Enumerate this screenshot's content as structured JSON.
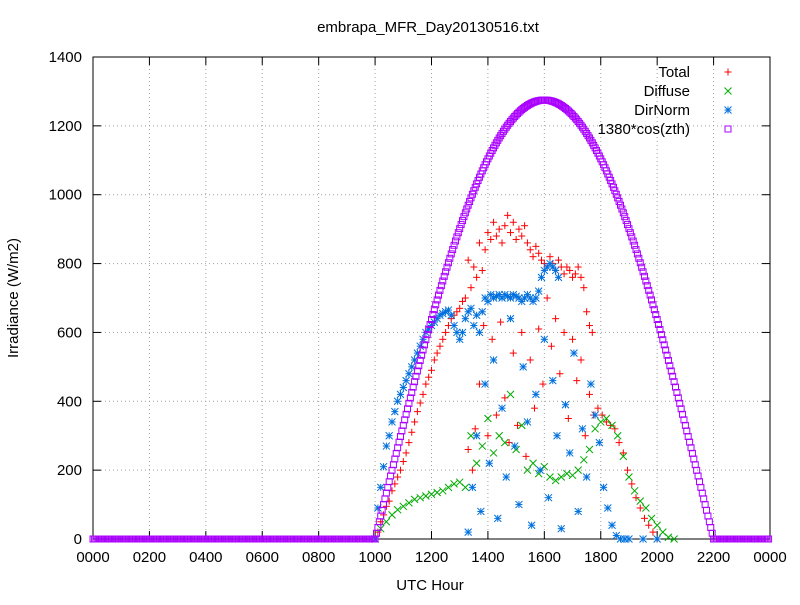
{
  "chart_data": {
    "type": "scatter",
    "title": "embrapa_MFR_Day20130516.txt",
    "xlabel": "UTC Hour",
    "ylabel": "Irradiance (W/m2)",
    "xlim": [
      0,
      24
    ],
    "ylim": [
      0,
      1400
    ],
    "x_ticks": [
      "0000",
      "0200",
      "0400",
      "0600",
      "0800",
      "1000",
      "1200",
      "1400",
      "1600",
      "1800",
      "2000",
      "2200",
      "0000"
    ],
    "y_ticks": [
      "0",
      "200",
      "400",
      "600",
      "800",
      "1000",
      "1200",
      "1400"
    ],
    "grid": true,
    "legend_position": "top-right",
    "series": [
      {
        "name": "Total",
        "marker": "plus",
        "color": "#ff0000",
        "points": [
          [
            10.0,
            0
          ],
          [
            10.1,
            20
          ],
          [
            10.2,
            50
          ],
          [
            10.3,
            70
          ],
          [
            10.4,
            95
          ],
          [
            10.5,
            110
          ],
          [
            10.6,
            140
          ],
          [
            10.7,
            160
          ],
          [
            10.8,
            180
          ],
          [
            10.9,
            200
          ],
          [
            11.0,
            225
          ],
          [
            11.1,
            250
          ],
          [
            11.2,
            280
          ],
          [
            11.3,
            310
          ],
          [
            11.4,
            340
          ],
          [
            11.5,
            370
          ],
          [
            11.6,
            395
          ],
          [
            11.7,
            420
          ],
          [
            11.8,
            450
          ],
          [
            11.9,
            470
          ],
          [
            12.0,
            490
          ],
          [
            12.1,
            520
          ],
          [
            12.2,
            540
          ],
          [
            12.3,
            560
          ],
          [
            12.4,
            580
          ],
          [
            12.5,
            600
          ],
          [
            12.6,
            620
          ],
          [
            12.7,
            640
          ],
          [
            12.8,
            650
          ],
          [
            12.9,
            660
          ],
          [
            13.0,
            670
          ],
          [
            13.1,
            690
          ],
          [
            13.2,
            700
          ],
          [
            13.3,
            810
          ],
          [
            13.4,
            730
          ],
          [
            13.5,
            790
          ],
          [
            13.6,
            760
          ],
          [
            13.7,
            860
          ],
          [
            13.8,
            780
          ],
          [
            13.9,
            840
          ],
          [
            14.0,
            890
          ],
          [
            14.1,
            870
          ],
          [
            14.2,
            920
          ],
          [
            14.3,
            880
          ],
          [
            14.4,
            900
          ],
          [
            14.5,
            860
          ],
          [
            14.6,
            910
          ],
          [
            14.7,
            940
          ],
          [
            14.8,
            890
          ],
          [
            14.9,
            920
          ],
          [
            15.0,
            870
          ],
          [
            15.1,
            900
          ],
          [
            15.2,
            880
          ],
          [
            15.3,
            910
          ],
          [
            15.4,
            860
          ],
          [
            15.5,
            840
          ],
          [
            15.6,
            820
          ],
          [
            15.7,
            850
          ],
          [
            15.8,
            830
          ],
          [
            15.9,
            810
          ],
          [
            16.0,
            800
          ],
          [
            16.1,
            790
          ],
          [
            16.2,
            820
          ],
          [
            16.3,
            800
          ],
          [
            16.4,
            780
          ],
          [
            16.5,
            810
          ],
          [
            16.6,
            790
          ],
          [
            16.7,
            770
          ],
          [
            16.8,
            790
          ],
          [
            16.9,
            780
          ],
          [
            17.0,
            760
          ],
          [
            17.1,
            770
          ],
          [
            17.2,
            790
          ],
          [
            17.3,
            760
          ],
          [
            17.4,
            730
          ],
          [
            17.5,
            660
          ],
          [
            17.6,
            620
          ],
          [
            17.7,
            600
          ],
          [
            13.3,
            260
          ],
          [
            13.45,
            200
          ],
          [
            13.55,
            320
          ],
          [
            13.7,
            450
          ],
          [
            13.85,
            620
          ],
          [
            14.0,
            300
          ],
          [
            14.15,
            580
          ],
          [
            14.3,
            360
          ],
          [
            14.45,
            630
          ],
          [
            14.6,
            410
          ],
          [
            14.75,
            280
          ],
          [
            14.9,
            540
          ],
          [
            15.05,
            330
          ],
          [
            15.2,
            600
          ],
          [
            15.35,
            240
          ],
          [
            15.5,
            520
          ],
          [
            15.65,
            380
          ],
          [
            15.8,
            610
          ],
          [
            15.95,
            450
          ],
          [
            16.1,
            700
          ],
          [
            16.25,
            560
          ],
          [
            16.4,
            640
          ],
          [
            16.55,
            480
          ],
          [
            16.7,
            600
          ],
          [
            16.85,
            350
          ],
          [
            17.0,
            580
          ],
          [
            17.15,
            460
          ],
          [
            17.3,
            520
          ],
          [
            17.45,
            300
          ],
          [
            17.6,
            420
          ],
          [
            17.75,
            360
          ],
          [
            17.9,
            380
          ],
          [
            18.05,
            360
          ],
          [
            18.2,
            340
          ],
          [
            18.35,
            330
          ],
          [
            18.5,
            320
          ],
          [
            18.65,
            280
          ],
          [
            18.8,
            250
          ],
          [
            18.95,
            200
          ],
          [
            19.1,
            160
          ],
          [
            19.25,
            120
          ],
          [
            19.4,
            90
          ],
          [
            19.55,
            60
          ],
          [
            19.7,
            40
          ],
          [
            19.85,
            20
          ],
          [
            20.0,
            0
          ]
        ]
      },
      {
        "name": "Diffuse",
        "marker": "cross",
        "color": "#00aa00",
        "points": [
          [
            10.0,
            0
          ],
          [
            10.2,
            30
          ],
          [
            10.4,
            50
          ],
          [
            10.6,
            70
          ],
          [
            10.8,
            85
          ],
          [
            11.0,
            95
          ],
          [
            11.2,
            105
          ],
          [
            11.4,
            115
          ],
          [
            11.6,
            120
          ],
          [
            11.8,
            125
          ],
          [
            12.0,
            130
          ],
          [
            12.2,
            135
          ],
          [
            12.4,
            140
          ],
          [
            12.6,
            150
          ],
          [
            12.8,
            160
          ],
          [
            13.0,
            165
          ],
          [
            13.2,
            150
          ],
          [
            13.4,
            300
          ],
          [
            13.6,
            220
          ],
          [
            13.8,
            270
          ],
          [
            14.0,
            350
          ],
          [
            14.2,
            250
          ],
          [
            14.4,
            300
          ],
          [
            14.6,
            280
          ],
          [
            14.8,
            420
          ],
          [
            15.0,
            260
          ],
          [
            15.2,
            330
          ],
          [
            15.4,
            200
          ],
          [
            15.6,
            220
          ],
          [
            15.8,
            190
          ],
          [
            16.0,
            210
          ],
          [
            16.2,
            180
          ],
          [
            16.4,
            170
          ],
          [
            16.6,
            180
          ],
          [
            16.8,
            190
          ],
          [
            17.0,
            185
          ],
          [
            17.2,
            200
          ],
          [
            17.4,
            230
          ],
          [
            17.6,
            260
          ],
          [
            17.8,
            320
          ],
          [
            18.0,
            340
          ],
          [
            18.2,
            350
          ],
          [
            18.4,
            330
          ],
          [
            18.6,
            300
          ],
          [
            18.8,
            240
          ],
          [
            19.0,
            180
          ],
          [
            19.2,
            140
          ],
          [
            19.4,
            110
          ],
          [
            19.6,
            90
          ],
          [
            19.8,
            60
          ],
          [
            20.0,
            40
          ],
          [
            20.2,
            20
          ],
          [
            20.4,
            5
          ],
          [
            20.6,
            0
          ]
        ]
      },
      {
        "name": "DirNorm",
        "marker": "star",
        "color": "#0070dd",
        "points": [
          [
            10.0,
            0
          ],
          [
            10.1,
            90
          ],
          [
            10.2,
            150
          ],
          [
            10.3,
            210
          ],
          [
            10.4,
            270
          ],
          [
            10.5,
            300
          ],
          [
            10.6,
            340
          ],
          [
            10.7,
            370
          ],
          [
            10.8,
            400
          ],
          [
            10.9,
            420
          ],
          [
            11.0,
            440
          ],
          [
            11.1,
            460
          ],
          [
            11.2,
            480
          ],
          [
            11.3,
            500
          ],
          [
            11.4,
            520
          ],
          [
            11.5,
            540
          ],
          [
            11.6,
            560
          ],
          [
            11.7,
            580
          ],
          [
            11.8,
            600
          ],
          [
            11.9,
            610
          ],
          [
            12.0,
            620
          ],
          [
            12.1,
            630
          ],
          [
            12.2,
            640
          ],
          [
            12.3,
            650
          ],
          [
            12.4,
            655
          ],
          [
            12.5,
            660
          ],
          [
            12.6,
            665
          ],
          [
            12.7,
            650
          ],
          [
            12.8,
            620
          ],
          [
            12.9,
            600
          ],
          [
            13.0,
            580
          ],
          [
            13.1,
            600
          ],
          [
            13.2,
            640
          ],
          [
            13.3,
            660
          ],
          [
            13.4,
            670
          ],
          [
            13.5,
            620
          ],
          [
            13.6,
            650
          ],
          [
            13.7,
            600
          ],
          [
            13.8,
            660
          ],
          [
            13.9,
            700
          ],
          [
            14.0,
            690
          ],
          [
            14.1,
            710
          ],
          [
            14.2,
            700
          ],
          [
            14.3,
            705
          ],
          [
            14.4,
            710
          ],
          [
            14.5,
            700
          ],
          [
            14.6,
            710
          ],
          [
            14.7,
            705
          ],
          [
            14.8,
            700
          ],
          [
            14.9,
            710
          ],
          [
            15.0,
            705
          ],
          [
            15.1,
            700
          ],
          [
            15.2,
            690
          ],
          [
            15.3,
            700
          ],
          [
            15.4,
            710
          ],
          [
            15.5,
            700
          ],
          [
            15.6,
            690
          ],
          [
            15.7,
            700
          ],
          [
            15.8,
            720
          ],
          [
            15.9,
            760
          ],
          [
            16.0,
            780
          ],
          [
            16.1,
            790
          ],
          [
            16.2,
            800
          ],
          [
            16.3,
            790
          ],
          [
            16.4,
            780
          ],
          [
            16.5,
            760
          ],
          [
            13.3,
            20
          ],
          [
            13.45,
            150
          ],
          [
            13.6,
            300
          ],
          [
            13.75,
            80
          ],
          [
            13.9,
            450
          ],
          [
            14.05,
            220
          ],
          [
            14.2,
            520
          ],
          [
            14.35,
            60
          ],
          [
            14.5,
            380
          ],
          [
            14.65,
            180
          ],
          [
            14.8,
            640
          ],
          [
            14.95,
            270
          ],
          [
            15.1,
            100
          ],
          [
            15.25,
            500
          ],
          [
            15.4,
            340
          ],
          [
            15.55,
            40
          ],
          [
            15.7,
            420
          ],
          [
            15.85,
            200
          ],
          [
            16.0,
            580
          ],
          [
            16.15,
            120
          ],
          [
            16.3,
            460
          ],
          [
            16.45,
            300
          ],
          [
            16.6,
            30
          ],
          [
            16.75,
            390
          ],
          [
            16.9,
            250
          ],
          [
            17.05,
            540
          ],
          [
            17.2,
            80
          ],
          [
            17.35,
            320
          ],
          [
            17.5,
            180
          ],
          [
            17.65,
            450
          ],
          [
            17.8,
            360
          ],
          [
            17.95,
            280
          ],
          [
            18.1,
            150
          ],
          [
            18.25,
            90
          ],
          [
            18.4,
            40
          ],
          [
            18.55,
            10
          ],
          [
            18.7,
            0
          ],
          [
            18.85,
            0
          ],
          [
            19.0,
            0
          ],
          [
            19.5,
            0
          ],
          [
            20.0,
            0
          ]
        ]
      },
      {
        "name": "1380*cos(zth)",
        "marker": "square",
        "color": "#aa00ff",
        "curve": {
          "baseline_before": 10.0,
          "peak_x": 16.0,
          "peak_y": 1275,
          "baseline_after": 22.0,
          "step": 0.05
        }
      }
    ]
  }
}
